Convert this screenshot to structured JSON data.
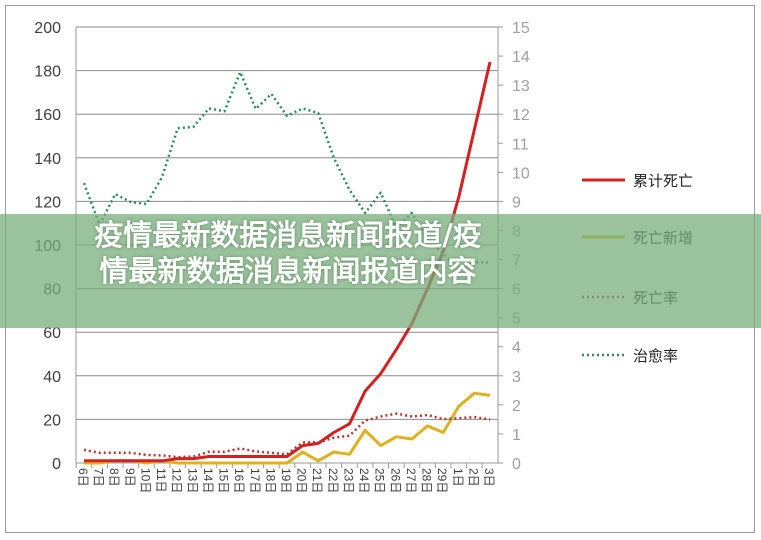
{
  "banner": {
    "text": "疫情最新数据消息新闻报道/疫情最新数据消息新闻报道内容"
  },
  "colors": {
    "cum_death": "#d42020",
    "new_death": "#e0b020",
    "death_rate": "#b83232",
    "cure_rate": "#2e8b57",
    "banner": "#78ae7c"
  },
  "chart_data": {
    "type": "line",
    "title": "",
    "categories": [
      "6日",
      "7日",
      "8日",
      "9日",
      "10日",
      "11日",
      "12日",
      "13日",
      "14日",
      "15日",
      "16日",
      "17日",
      "18日",
      "19日",
      "20日",
      "21日",
      "22日",
      "23日",
      "24日",
      "25日",
      "26日",
      "27日",
      "28日",
      "29日",
      "1日",
      "2日",
      "3日"
    ],
    "y_left": {
      "range": [
        0,
        200
      ],
      "ticks": [
        0,
        20,
        40,
        60,
        80,
        100,
        120,
        140,
        160,
        180,
        200
      ]
    },
    "y_right": {
      "range": [
        0,
        15
      ],
      "ticks": [
        0,
        1,
        2,
        3,
        4,
        5,
        6,
        7,
        8,
        9,
        10,
        11,
        12,
        13,
        14,
        15
      ]
    },
    "grid": true,
    "legend_position": "right",
    "series": [
      {
        "name": "累计死亡",
        "axis": "left",
        "style": "solid",
        "values": [
          1,
          1,
          1,
          1,
          1,
          1,
          2,
          2,
          3,
          3,
          3,
          3,
          3,
          3,
          8,
          9,
          14,
          18,
          33,
          41,
          52,
          64,
          80,
          97,
          122,
          153,
          184
        ]
      },
      {
        "name": "死亡新增",
        "axis": "left",
        "style": "solid",
        "values": [
          0,
          0,
          1,
          1,
          0,
          1,
          0,
          0,
          0,
          0,
          0,
          0,
          0,
          0,
          5,
          1,
          5,
          4,
          15,
          8,
          12,
          11,
          17,
          14,
          26,
          32,
          31
        ]
      },
      {
        "name": "死亡率",
        "axis": "right",
        "style": "dotted",
        "values": [
          0.45,
          0.35,
          0.35,
          0.35,
          0.28,
          0.26,
          0.2,
          0.22,
          0.39,
          0.39,
          0.5,
          0.4,
          0.35,
          0.3,
          0.71,
          0.71,
          0.87,
          0.94,
          1.46,
          1.6,
          1.7,
          1.6,
          1.65,
          1.51,
          1.54,
          1.58,
          1.5
        ]
      },
      {
        "name": "治愈率",
        "axis": "right",
        "style": "dotted",
        "values": [
          9.63,
          8.19,
          9.25,
          8.98,
          8.91,
          9.84,
          11.52,
          11.56,
          12.2,
          12.1,
          13.45,
          12.18,
          12.7,
          11.94,
          12.2,
          12.04,
          10.5,
          9.4,
          8.6,
          9.3,
          8.1,
          8.6,
          7.7,
          7.2,
          6.64,
          6.9,
          6.9
        ]
      }
    ]
  }
}
